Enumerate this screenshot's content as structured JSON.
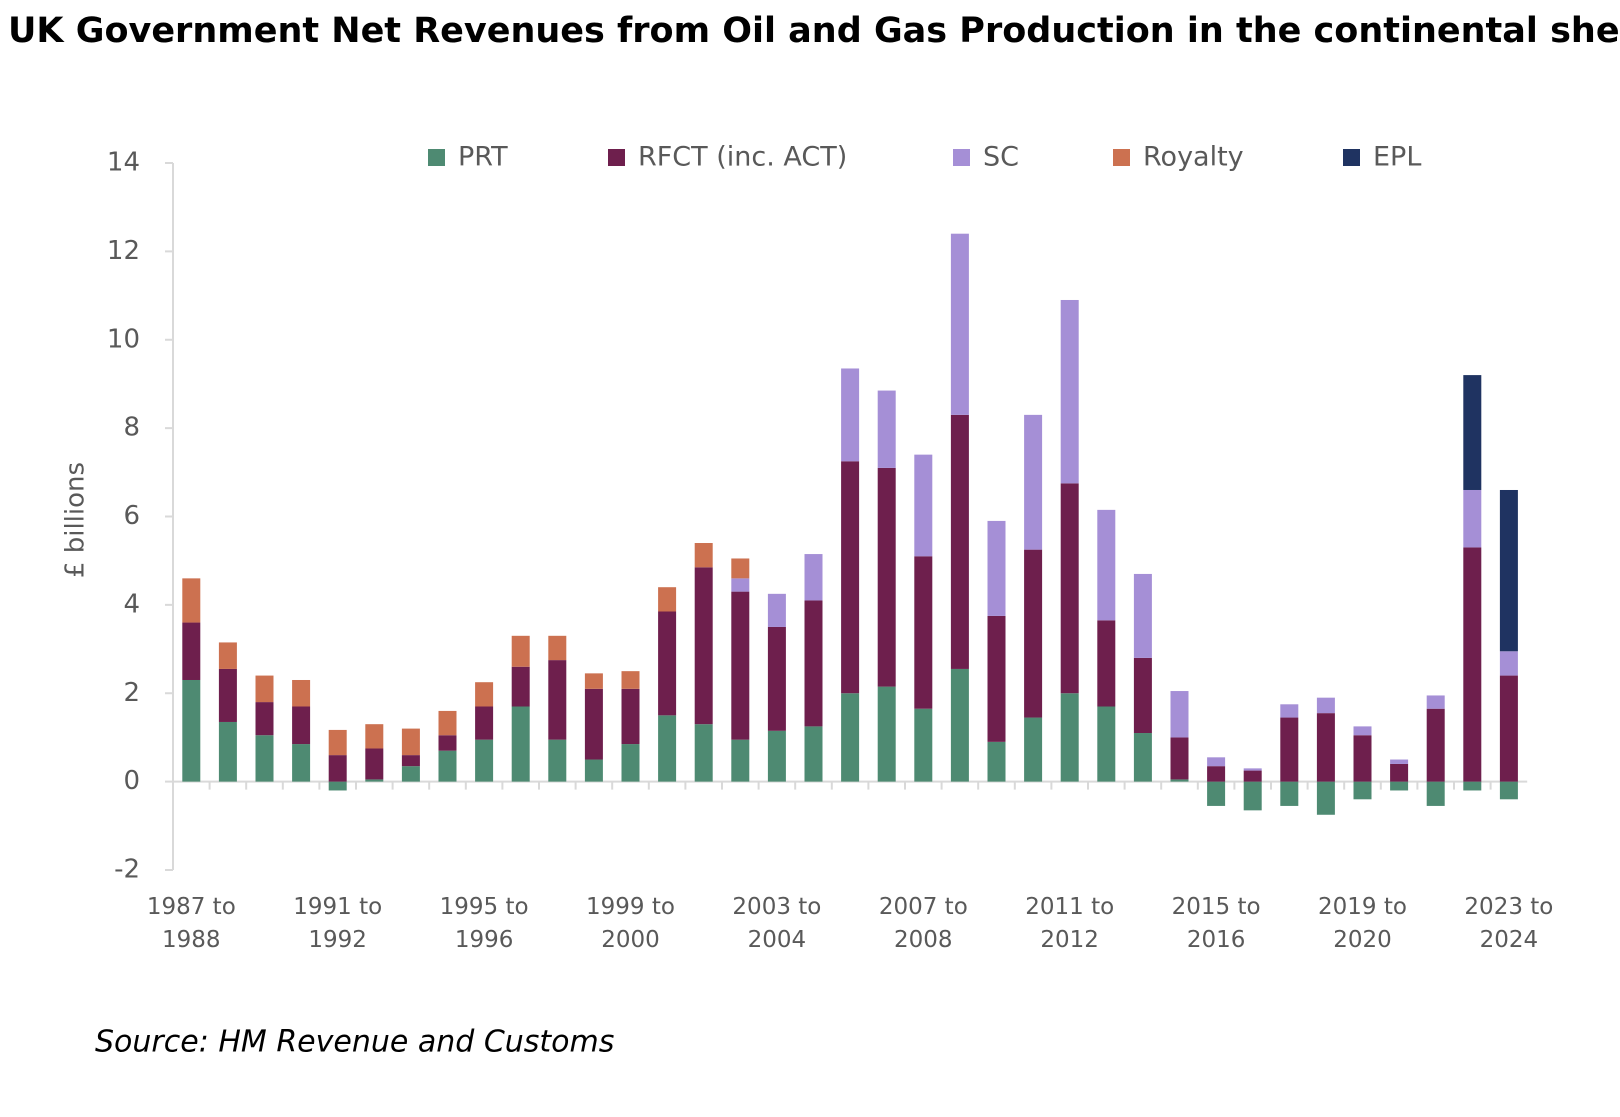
{
  "chart_data": {
    "type": "stacked_bar",
    "title": "UK Government Net Revenues from Oil and Gas Production in the continental shelf",
    "ylabel": "£ billions",
    "source": "Source: HM Revenue and Customs",
    "categories": [
      "1987 to 1988",
      null,
      null,
      null,
      "1991 to 1992",
      null,
      null,
      null,
      "1995 to 1996",
      null,
      null,
      null,
      "1999 to 2000",
      null,
      null,
      null,
      "2003 to 2004",
      null,
      null,
      null,
      "2007 to 2008",
      null,
      null,
      null,
      "2011 to 2012",
      null,
      null,
      null,
      "2015 to 2016",
      null,
      null,
      null,
      "2019 to 2020",
      null,
      null,
      null,
      "2023 to 2024"
    ],
    "series": [
      {
        "name": "PRT",
        "color": "#4e8a72",
        "values": [
          2.3,
          1.35,
          1.05,
          0.85,
          -0.2,
          0.05,
          0.35,
          0.7,
          0.95,
          1.7,
          0.95,
          0.5,
          0.85,
          1.5,
          1.3,
          0.95,
          1.15,
          1.25,
          2.0,
          2.15,
          1.65,
          2.55,
          0.9,
          1.45,
          2.0,
          1.7,
          1.1,
          0.05,
          -0.55,
          -0.65,
          -0.55,
          -0.75,
          -0.4,
          -0.2,
          -0.55,
          -0.2,
          -0.4
        ]
      },
      {
        "name": "RFCT (inc. ACT)",
        "color": "#6e1f4d",
        "values": [
          1.3,
          1.2,
          0.75,
          0.85,
          0.6,
          0.7,
          0.25,
          0.35,
          0.75,
          0.9,
          1.8,
          1.6,
          1.25,
          2.35,
          3.55,
          3.35,
          2.35,
          2.85,
          5.25,
          4.95,
          3.45,
          5.75,
          2.85,
          3.8,
          4.75,
          1.95,
          1.7,
          0.95,
          0.35,
          0.25,
          1.45,
          1.55,
          1.05,
          0.4,
          1.65,
          5.3,
          2.4
        ]
      },
      {
        "name": "SC",
        "color": "#a58fd6",
        "values": [
          0,
          0,
          0,
          0,
          0,
          0,
          0,
          0,
          0,
          0,
          0,
          0,
          0,
          0,
          0,
          0.3,
          0.75,
          1.05,
          2.1,
          1.75,
          2.3,
          4.1,
          2.15,
          3.05,
          4.15,
          2.5,
          1.9,
          1.05,
          0.2,
          0.05,
          0.3,
          0.35,
          0.2,
          0.1,
          0.3,
          1.3,
          0.55
        ]
      },
      {
        "name": "Royalty",
        "color": "#cc7150",
        "values": [
          1.0,
          0.6,
          0.6,
          0.6,
          0.57,
          0.55,
          0.6,
          0.55,
          0.55,
          0.7,
          0.55,
          0.35,
          0.4,
          0.55,
          0.55,
          0.45,
          0,
          0,
          0,
          0,
          0,
          0,
          0,
          0,
          0,
          0,
          0,
          0,
          0,
          0,
          0,
          0,
          0,
          0,
          0,
          0,
          0
        ]
      },
      {
        "name": "EPL",
        "color": "#1f3361",
        "values": [
          0,
          0,
          0,
          0,
          0,
          0,
          0,
          0,
          0,
          0,
          0,
          0,
          0,
          0,
          0,
          0,
          0,
          0,
          0,
          0,
          0,
          0,
          0,
          0,
          0,
          0,
          0,
          0,
          0,
          0,
          0,
          0,
          0,
          0,
          0,
          2.6,
          3.65
        ]
      }
    ],
    "ylim": [
      -2,
      14
    ],
    "yticks": [
      -2,
      0,
      2,
      4,
      6,
      8,
      10,
      12,
      14
    ]
  }
}
